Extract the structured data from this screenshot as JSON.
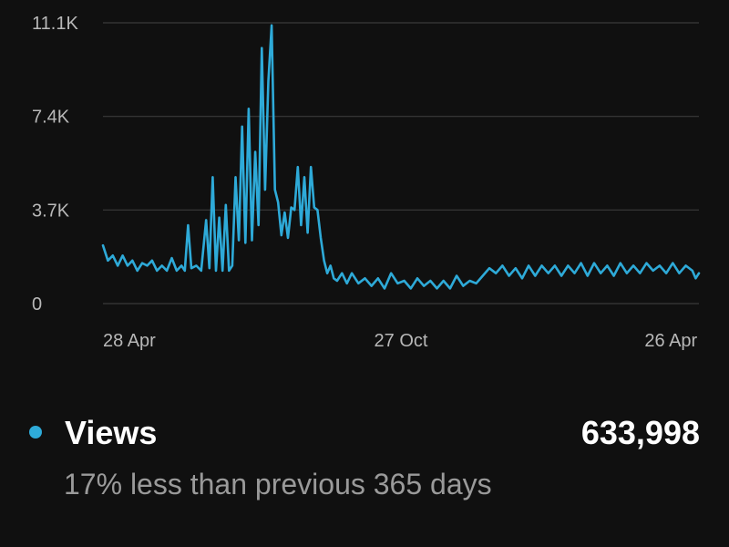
{
  "chart_data": {
    "type": "line",
    "title": "",
    "xlabel": "",
    "ylabel": "",
    "ylim": [
      0,
      11100
    ],
    "y_ticks": [
      {
        "value": 0,
        "label": "0"
      },
      {
        "value": 3700,
        "label": "3.7K"
      },
      {
        "value": 7400,
        "label": "7.4K"
      },
      {
        "value": 11100,
        "label": "11.1K"
      }
    ],
    "x_ticks": [
      {
        "index": 0,
        "label": "28 Apr"
      },
      {
        "index": 182,
        "label": "27 Oct"
      },
      {
        "index": 363,
        "label": "26 Apr"
      }
    ],
    "x_range": [
      0,
      364
    ],
    "grid": true,
    "line_color": "#2eaad8",
    "series": [
      {
        "name": "Views",
        "x": [
          0,
          3,
          6,
          9,
          12,
          15,
          18,
          21,
          24,
          27,
          30,
          33,
          36,
          39,
          42,
          45,
          48,
          50,
          52,
          54,
          57,
          60,
          63,
          65,
          67,
          69,
          71,
          73,
          75,
          77,
          79,
          81,
          83,
          85,
          87,
          89,
          91,
          93,
          95,
          97,
          99,
          101,
          103,
          105,
          107,
          109,
          111,
          113,
          115,
          117,
          119,
          121,
          123,
          125,
          127,
          129,
          131,
          133,
          135,
          137,
          139,
          141,
          143,
          146,
          149,
          152,
          156,
          160,
          164,
          168,
          172,
          176,
          180,
          184,
          188,
          192,
          196,
          200,
          204,
          208,
          212,
          216,
          220,
          224,
          228,
          232,
          236,
          240,
          244,
          248,
          252,
          256,
          260,
          264,
          268,
          272,
          276,
          280,
          284,
          288,
          292,
          296,
          300,
          304,
          308,
          312,
          316,
          320,
          324,
          328,
          332,
          336,
          340,
          344,
          348,
          352,
          356,
          360,
          362,
          364
        ],
        "y": [
          2300,
          1700,
          1900,
          1500,
          1900,
          1500,
          1700,
          1300,
          1600,
          1500,
          1700,
          1300,
          1500,
          1300,
          1800,
          1300,
          1500,
          1300,
          3100,
          1400,
          1500,
          1300,
          3300,
          1400,
          5000,
          1300,
          3400,
          1300,
          3900,
          1300,
          1500,
          5000,
          2500,
          7000,
          2400,
          7700,
          2500,
          6000,
          3100,
          10100,
          4500,
          8800,
          11000,
          4500,
          4000,
          2700,
          3600,
          2600,
          3800,
          3700,
          5400,
          3100,
          5000,
          2800,
          5400,
          3800,
          3700,
          2600,
          1700,
          1200,
          1500,
          1000,
          900,
          1200,
          800,
          1200,
          800,
          1000,
          700,
          1000,
          600,
          1200,
          800,
          900,
          600,
          1000,
          700,
          900,
          600,
          900,
          600,
          1100,
          700,
          900,
          800,
          1100,
          1400,
          1200,
          1500,
          1100,
          1400,
          1000,
          1500,
          1100,
          1500,
          1200,
          1500,
          1100,
          1500,
          1200,
          1600,
          1100,
          1600,
          1200,
          1500,
          1100,
          1600,
          1200,
          1500,
          1200,
          1600,
          1300,
          1500,
          1200,
          1600,
          1200,
          1500,
          1300,
          1000,
          1200
        ]
      }
    ]
  },
  "legend": {
    "label": "Views",
    "color": "#2eaad8",
    "total": "633,998",
    "comparison": "17% less than previous 365 days"
  }
}
